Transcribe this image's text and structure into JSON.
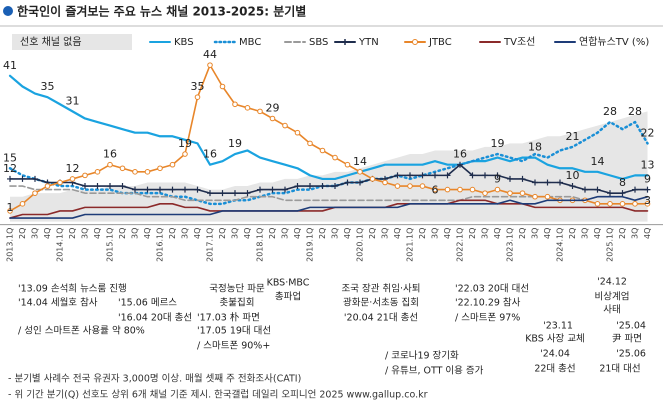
{
  "chart_data": {
    "type": "line",
    "title": "한국인이 즐겨보는 주요 뉴스 채널 2013-2025: 분기별",
    "categories": [
      "2013.1Q",
      "2Q",
      "3Q",
      "4Q",
      "2014.1Q",
      "2Q",
      "3Q",
      "4Q",
      "2015.1Q",
      "2Q",
      "3Q",
      "4Q",
      "2016.1Q",
      "2Q",
      "3Q",
      "4Q",
      "2017.1Q",
      "2Q",
      "3Q",
      "4Q",
      "2018.1Q",
      "2Q",
      "3Q",
      "4Q",
      "2019.1Q",
      "2Q",
      "3Q",
      "4Q",
      "2020.1Q",
      "2Q",
      "3Q",
      "4Q",
      "2021.1Q",
      "2Q",
      "3Q",
      "4Q",
      "2022.1Q",
      "2Q",
      "3Q",
      "4Q",
      "2023.1Q",
      "2Q",
      "3Q",
      "4Q",
      "2024.1Q",
      "2Q",
      "3Q",
      "4Q",
      "2025.1Q",
      "2Q",
      "3Q",
      "4Q"
    ],
    "ylim": [
      0,
      45
    ],
    "series": [
      {
        "name": "선호 채널 없음",
        "kind": "area",
        "color": "#e6e6e6",
        "values": [
          7,
          7,
          8,
          8,
          8,
          9,
          9,
          9,
          10,
          10,
          10,
          11,
          11,
          11,
          11,
          10,
          9,
          9,
          10,
          10,
          11,
          11,
          12,
          12,
          13,
          13,
          14,
          14,
          15,
          16,
          17,
          18,
          19,
          19,
          20,
          20,
          20,
          20,
          21,
          21,
          22,
          22,
          23,
          24,
          24,
          25,
          26,
          27,
          28,
          29,
          30,
          31
        ],
        "label_at": []
      },
      {
        "name": "KBS",
        "color": "#1aa3e0",
        "dash": "solid",
        "values": [
          41,
          38,
          36,
          35,
          33,
          31,
          29,
          28,
          27,
          26,
          25,
          25,
          24,
          24,
          23,
          22,
          16,
          17,
          19,
          20,
          18,
          17,
          16,
          15,
          13,
          12,
          12,
          13,
          14,
          15,
          16,
          16,
          16,
          16,
          17,
          16,
          16,
          17,
          17,
          18,
          17,
          18,
          18,
          16,
          15,
          15,
          14,
          14,
          13,
          12,
          13,
          13
        ],
        "label_at": [
          0,
          3,
          5,
          16,
          18,
          42,
          47,
          51
        ]
      },
      {
        "name": "MBC",
        "color": "#1a8fd6",
        "dash": "dot",
        "values": [
          15,
          13,
          12,
          11,
          10,
          10,
          9,
          9,
          9,
          8,
          8,
          8,
          8,
          7,
          7,
          6,
          5,
          5,
          6,
          6,
          7,
          8,
          8,
          9,
          9,
          10,
          10,
          11,
          11,
          12,
          12,
          13,
          12,
          13,
          14,
          15,
          16,
          17,
          18,
          19,
          18,
          17,
          19,
          18,
          20,
          21,
          23,
          25,
          28,
          26,
          28,
          22
        ],
        "label_at": [
          0,
          39,
          45,
          48,
          50,
          51
        ]
      },
      {
        "name": "SBS",
        "color": "#9a9a9a",
        "dash": "dash",
        "values": [
          10,
          10,
          9,
          9,
          9,
          9,
          8,
          8,
          8,
          8,
          8,
          7,
          7,
          7,
          6,
          6,
          6,
          6,
          6,
          7,
          7,
          7,
          6,
          6,
          6,
          6,
          6,
          6,
          6,
          6,
          6,
          6,
          6,
          6,
          6,
          6,
          6,
          7,
          7,
          7,
          7,
          7,
          7,
          7,
          7,
          7,
          6,
          7,
          7,
          7,
          6,
          7
        ],
        "label_at": [
          34
        ]
      },
      {
        "name": "YTN",
        "color": "#1f2d4d",
        "dash": "solid",
        "marker": "plus",
        "values": [
          12,
          12,
          12,
          11,
          11,
          11,
          10,
          10,
          10,
          10,
          9,
          9,
          9,
          9,
          9,
          9,
          8,
          8,
          8,
          8,
          9,
          9,
          9,
          10,
          10,
          10,
          10,
          11,
          11,
          12,
          12,
          13,
          13,
          13,
          13,
          13,
          16,
          13,
          13,
          13,
          12,
          12,
          11,
          11,
          11,
          10,
          9,
          9,
          8,
          8,
          9,
          9
        ],
        "label_at": [
          0,
          36,
          45,
          49,
          51
        ]
      },
      {
        "name": "JTBC",
        "color": "#e8862a",
        "dash": "solid",
        "marker": "circle",
        "values": [
          3,
          5,
          8,
          10,
          11,
          12,
          13,
          14,
          16,
          15,
          14,
          14,
          15,
          16,
          19,
          35,
          44,
          38,
          33,
          32,
          31,
          29,
          27,
          25,
          22,
          20,
          18,
          16,
          14,
          12,
          11,
          10,
          10,
          10,
          9,
          9,
          9,
          9,
          8,
          9,
          8,
          8,
          7,
          7,
          6,
          6,
          6,
          5,
          5,
          5,
          5,
          5
        ],
        "label_at": [
          5,
          8,
          14,
          15,
          16,
          21,
          28,
          39
        ]
      },
      {
        "name": "TV조선",
        "color": "#8b2a2a",
        "dash": "solid",
        "values": [
          1,
          2,
          2,
          2,
          3,
          3,
          4,
          4,
          4,
          4,
          4,
          4,
          5,
          5,
          4,
          4,
          3,
          3,
          3,
          3,
          3,
          3,
          3,
          3,
          3,
          3,
          4,
          4,
          4,
          4,
          4,
          5,
          5,
          5,
          5,
          5,
          6,
          6,
          6,
          5,
          5,
          5,
          4,
          4,
          4,
          4,
          4,
          4,
          4,
          4,
          3,
          3
        ],
        "label_at": [
          0,
          51
        ]
      },
      {
        "name": "연합뉴스TV (%)",
        "color": "#1e3c78",
        "dash": "solid",
        "values": [
          1,
          1,
          1,
          1,
          1,
          1,
          2,
          2,
          2,
          2,
          2,
          2,
          2,
          2,
          2,
          2,
          2,
          3,
          3,
          3,
          3,
          3,
          3,
          3,
          4,
          4,
          4,
          4,
          4,
          4,
          4,
          4,
          5,
          5,
          5,
          5,
          5,
          5,
          5,
          5,
          6,
          5,
          5,
          6,
          6,
          6,
          6,
          7,
          7,
          7,
          6,
          7
        ],
        "label_at": []
      }
    ],
    "annotations": [
      "'13.09 손석희 뉴스룸 진행",
      "'14.04 세월호 참사",
      "'15.06 메르스",
      "'16.04 20대 총선",
      "/ 성인 스마트폰 사용률 약 80%",
      "국정농단 파문",
      "촛불집회",
      "'17.03 朴 파면",
      "'17.05 19대 대선",
      "/ 스마트폰 90%+",
      "KBS·MBC",
      "총파업",
      "조국 장관 취임·사퇴",
      "광화문·서초동 집회",
      "'20.04 21대 총선",
      "/ 코로나19 장기화",
      "/ 유튜브, OTT 이용 증가",
      "'22.03 20대 대선",
      "'22.10.29 참사",
      "/ 스마트폰 97%",
      "'23.11",
      "KBS 사장 교체",
      "'24.04",
      "22대 총선",
      "'24.12",
      "비상계엄",
      "사태",
      "'25.04",
      "尹 파면",
      "'25.06",
      "21대 대선"
    ],
    "footnotes": [
      "- 분기별 사례수 전국 유권자 3,000명 이상. 매월 셋째 주 전화조사(CATI)",
      "- 위 기간 분기(Q) 선호도 상위 6개 채널 기준 제시. 한국갤럽 데일리 오피니언 2025 www.gallup.co.kr"
    ]
  }
}
